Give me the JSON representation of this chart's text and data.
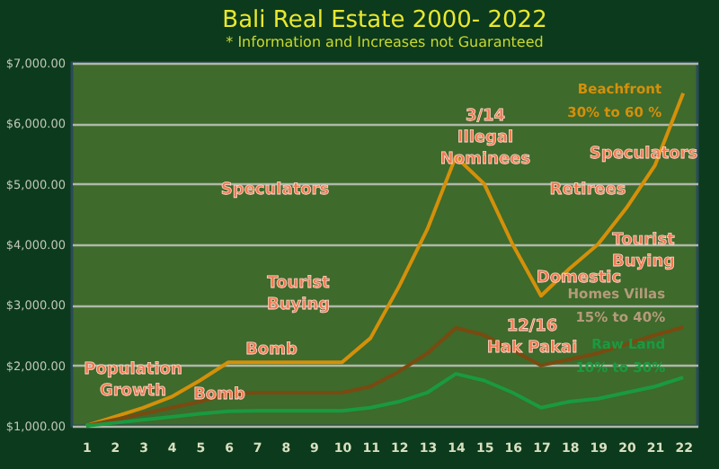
{
  "chart_data": {
    "type": "line",
    "title": "Bali Real Estate 2000- 2022",
    "subtitle": "* Information and Increases not Guaranteed",
    "x": [
      1,
      2,
      3,
      4,
      5,
      6,
      7,
      8,
      9,
      10,
      11,
      12,
      13,
      14,
      15,
      16,
      17,
      18,
      19,
      20,
      21,
      22
    ],
    "series": [
      {
        "name": "Beachfront\n30% to 60 %",
        "color": "#d4900a",
        "values": [
          1000,
          1150,
          1300,
          1480,
          1750,
          2050,
          2050,
          2050,
          2050,
          2050,
          2450,
          3300,
          4250,
          5450,
          5000,
          4000,
          3150,
          3600,
          4000,
          4600,
          5300,
          6500
        ]
      },
      {
        "name": "Homes Villas\n15% to 40%",
        "color": "#7a4a10",
        "values": [
          1000,
          1100,
          1200,
          1300,
          1400,
          1530,
          1550,
          1550,
          1550,
          1550,
          1650,
          1900,
          2200,
          2620,
          2500,
          2250,
          2000,
          2100,
          2200,
          2350,
          2500,
          2630
        ]
      },
      {
        "name": "Raw Land\n10% to 30%",
        "color": "#1a9a40",
        "values": [
          1000,
          1050,
          1100,
          1150,
          1200,
          1240,
          1250,
          1250,
          1250,
          1250,
          1300,
          1400,
          1550,
          1860,
          1750,
          1550,
          1300,
          1400,
          1450,
          1550,
          1650,
          1800
        ]
      }
    ],
    "xlim": [
      0.5,
      22.5
    ],
    "ylim": [
      1000,
      7000
    ],
    "xticks": [
      1,
      2,
      3,
      4,
      5,
      6,
      7,
      8,
      9,
      10,
      11,
      12,
      13,
      14,
      15,
      16,
      17,
      18,
      19,
      20,
      21,
      22
    ],
    "yticks": [
      {
        "value": 1000,
        "label": "$1,000.00"
      },
      {
        "value": 2000,
        "label": "$2,000.00"
      },
      {
        "value": 3000,
        "label": "$3,000.00"
      },
      {
        "value": 4000,
        "label": "$4,000.00"
      },
      {
        "value": 5000,
        "label": "$5,000.00"
      },
      {
        "value": 6000,
        "label": "$6,000.00"
      },
      {
        "value": 7000,
        "label": "$7,000.00"
      }
    ],
    "grid": "y",
    "marker": "none",
    "line_style": "solid",
    "annotations": [
      "Population\nGrowth",
      "Bomb",
      "Bomb",
      "Tourist\nBuying",
      "Speculators",
      "3/14\nIllegal\nNominees",
      "Speculators",
      "Retirees",
      "Tourist\nBuying",
      "Domestic",
      "12/16\nHak Pakai"
    ]
  }
}
